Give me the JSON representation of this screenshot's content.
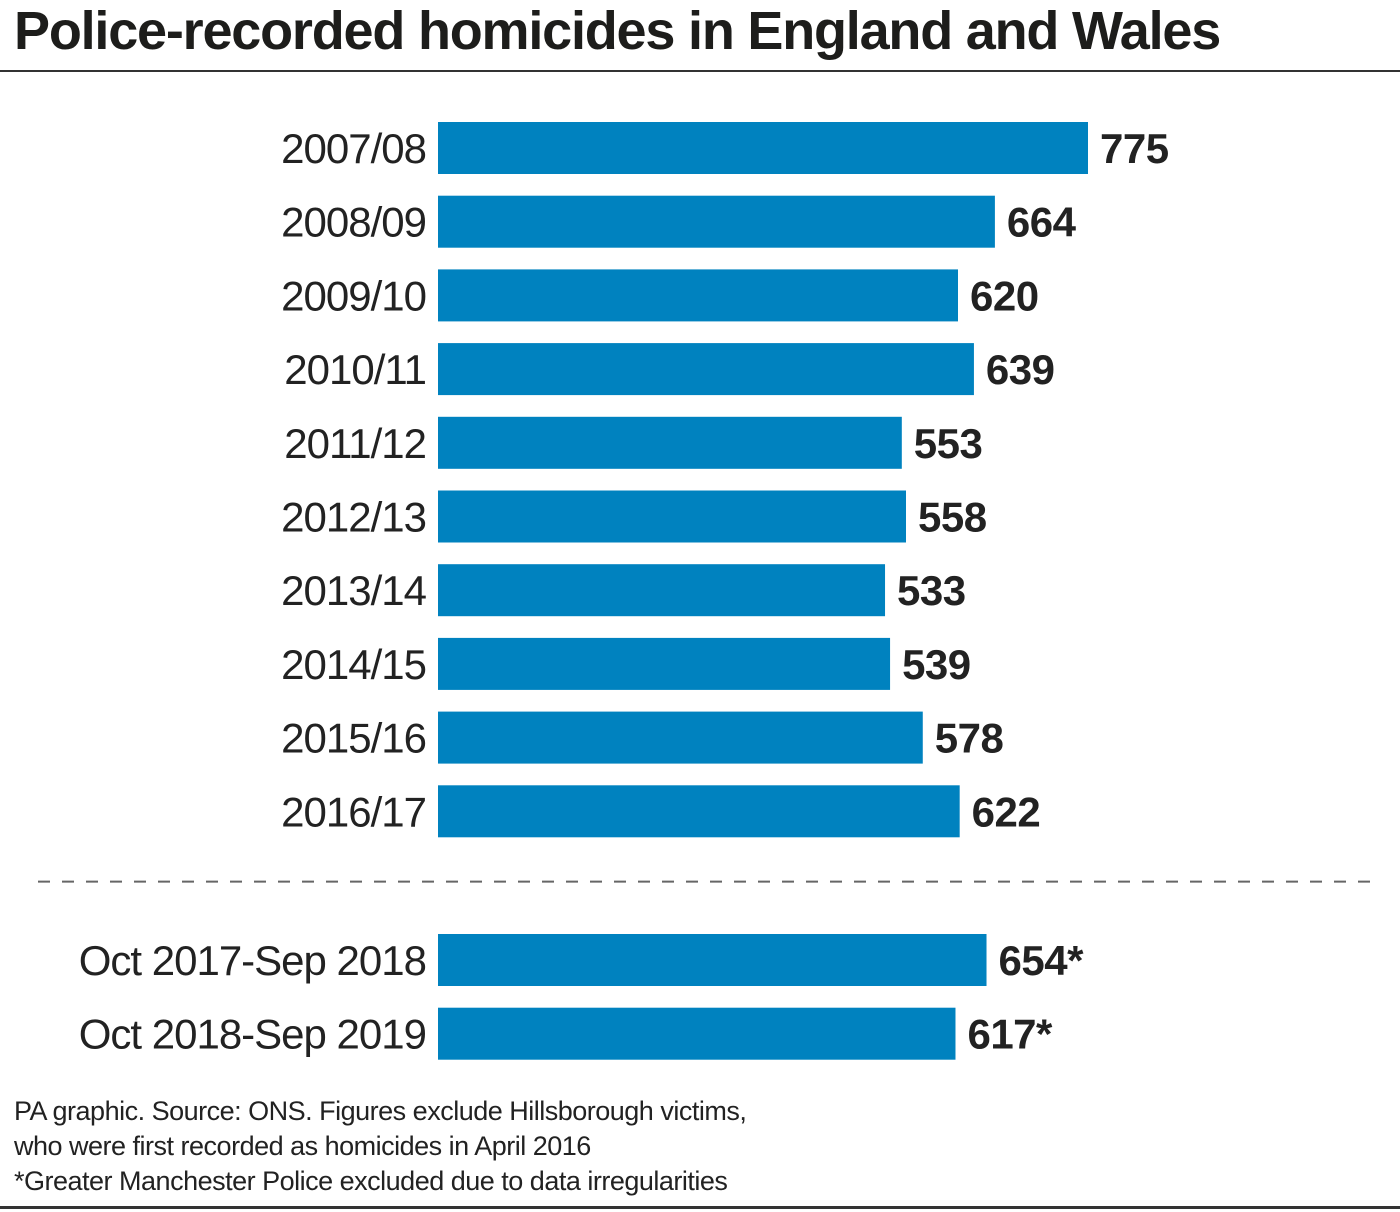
{
  "title": "Police-recorded homicides in England and Wales",
  "footer": {
    "line1": "PA graphic. Source: ONS. Figures exclude Hillsborough victims,",
    "line2": "who were first recorded as homicides in April 2016",
    "line3": "*Greater Manchester Police excluded due to data irregularities"
  },
  "colors": {
    "bar": "#0082bf",
    "text": "#222222",
    "rule": "#333333"
  },
  "chart_data": {
    "type": "bar",
    "orientation": "horizontal",
    "title": "Police-recorded homicides in England and Wales",
    "xlabel": "",
    "ylabel": "",
    "grid": false,
    "legend": "none",
    "categories": [
      "2007/08",
      "2008/09",
      "2009/10",
      "2010/11",
      "2011/12",
      "2012/13",
      "2013/14",
      "2014/15",
      "2015/16",
      "2016/17",
      "Oct 2017-Sep 2018",
      "Oct 2018-Sep 2019"
    ],
    "values": [
      775,
      664,
      620,
      639,
      553,
      558,
      533,
      539,
      578,
      622,
      654,
      617
    ],
    "value_labels": [
      "775",
      "664",
      "620",
      "639",
      "553",
      "558",
      "533",
      "539",
      "578",
      "622",
      "654*",
      "617*"
    ],
    "xlim": [
      0,
      775
    ]
  }
}
